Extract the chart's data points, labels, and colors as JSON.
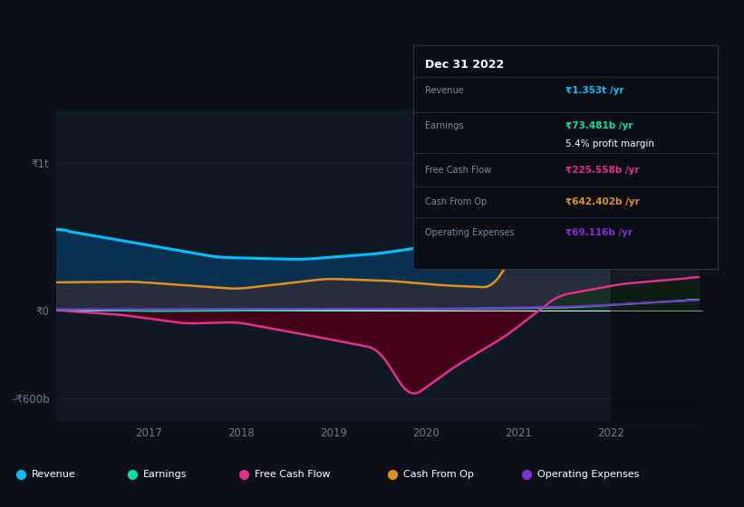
{
  "bg_color": "#0d1117",
  "plot_bg": "#0f1923",
  "grid_color": "#182030",
  "series_revenue_color": "#00bfff",
  "series_revenue_fill": "#0a3050",
  "series_earnings_color": "#00e0a0",
  "series_fcf_color": "#e03090",
  "series_fcf_fill": "#4a0018",
  "series_cop_color": "#e09020",
  "series_cop_fill": "#252e3a",
  "series_opex_color": "#8030d0",
  "ytick_labels": [
    "₹1t",
    "₹0",
    "-₹600b"
  ],
  "ytick_vals": [
    1000,
    0,
    -600
  ],
  "xtick_labels": [
    "2017",
    "2018",
    "2019",
    "2020",
    "2021",
    "2022"
  ],
  "xtick_vals": [
    2017,
    2018,
    2019,
    2020,
    2021,
    2022
  ],
  "xlim": [
    2016.0,
    2023.0
  ],
  "ylim": [
    -750,
    1350
  ],
  "legend_labels": [
    "Revenue",
    "Earnings",
    "Free Cash Flow",
    "Cash From Op",
    "Operating Expenses"
  ],
  "legend_colors": [
    "#00bfff",
    "#00e0a0",
    "#e03090",
    "#e09020",
    "#8030d0"
  ],
  "tooltip_date": "Dec 31 2022",
  "tooltip_rows": [
    [
      "Revenue",
      "₹1.353t /yr",
      "#00bfff"
    ],
    [
      "Earnings",
      "₹73.481b /yr",
      "#00e0a0"
    ],
    [
      "",
      "5.4% profit margin",
      "#ffffff"
    ],
    [
      "Free Cash Flow",
      "₹225.558b /yr",
      "#e03090"
    ],
    [
      "Cash From Op",
      "₹642.402b /yr",
      "#e09020"
    ],
    [
      "Operating Expenses",
      "₹69.116b /yr",
      "#8030d0"
    ]
  ],
  "highlight_start": 2022.0,
  "axis_text_color": "#6a7a8a",
  "sep_color": "#1e2e3e",
  "tooltip_bg": "#0a0d14",
  "tooltip_border": "#25354a"
}
